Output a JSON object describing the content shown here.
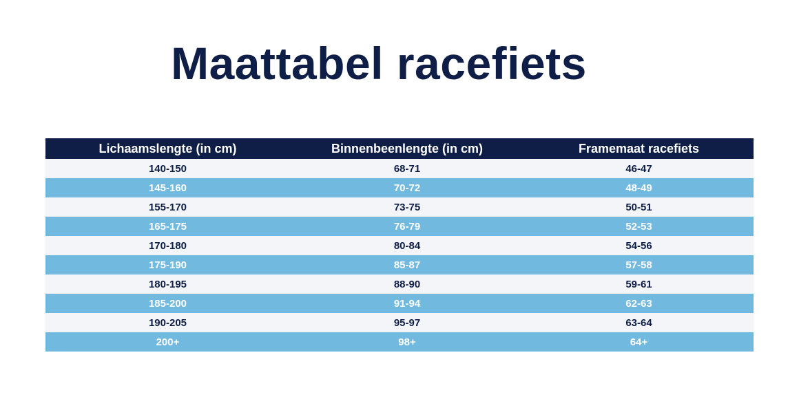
{
  "page": {
    "title": "Maattabel racefiets"
  },
  "table": {
    "headers": [
      "Lichaamslengte (in cm)",
      "Binnenbeenlengte (in cm)",
      "Framemaat racefiets"
    ],
    "rows": [
      [
        "140-150",
        "68-71",
        "46-47"
      ],
      [
        "145-160",
        "70-72",
        "48-49"
      ],
      [
        "155-170",
        "73-75",
        "50-51"
      ],
      [
        "165-175",
        "76-79",
        "52-53"
      ],
      [
        "170-180",
        "80-84",
        "54-56"
      ],
      [
        "175-190",
        "85-87",
        "57-58"
      ],
      [
        "180-195",
        "88-90",
        "59-61"
      ],
      [
        "185-200",
        "91-94",
        "62-63"
      ],
      [
        "190-205",
        "95-97",
        "63-64"
      ],
      [
        "200+",
        "98+",
        "64+"
      ]
    ]
  },
  "colors": {
    "header_background": "#0f1e46",
    "row_light": "#f3f5f8",
    "row_blue": "#72b9df",
    "title_text": "#0f1e46"
  }
}
